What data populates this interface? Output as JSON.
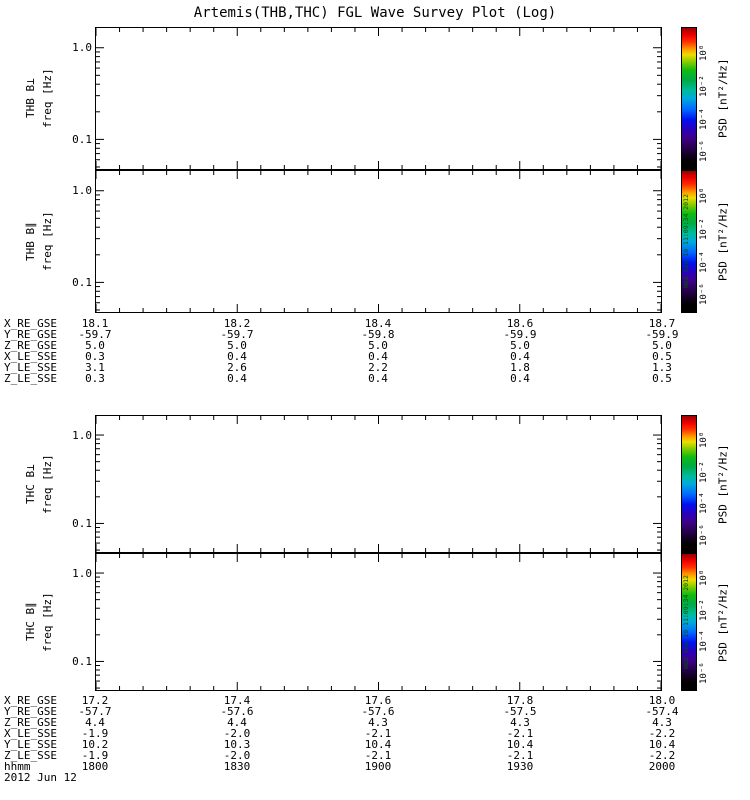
{
  "chart_data": {
    "type": "heatmap",
    "title": "Artemis(THB,THC) FGL Wave Survey Plot (Log)",
    "panels": [
      {
        "name": "THB B⊥",
        "axis_label": "freq [Hz]",
        "yscale": "log",
        "ytick_labels": [
          "1.0",
          "0.1"
        ],
        "data": []
      },
      {
        "name": "THB B∥",
        "axis_label": "freq [Hz]",
        "yscale": "log",
        "ytick_labels": [
          "1.0",
          "0.1"
        ],
        "data": []
      },
      {
        "name": "THC B⊥",
        "axis_label": "freq [Hz]",
        "yscale": "log",
        "ytick_labels": [
          "1.0",
          "0.1"
        ],
        "data": []
      },
      {
        "name": "THC B∥",
        "axis_label": "freq [Hz]",
        "yscale": "log",
        "ytick_labels": [
          "1.0",
          "0.1"
        ],
        "data": []
      }
    ],
    "colorbar": {
      "label": "PSD [nT²/Hz]",
      "scale": "log",
      "tick_labels": [
        "10⁰",
        "10⁻²",
        "10⁻⁴",
        "10⁻⁶"
      ]
    },
    "time_axis": {
      "label": "hhmm",
      "ticks": [
        "1800",
        "1830",
        "1900",
        "1930",
        "2000"
      ],
      "date": "2012 Jun 12"
    },
    "ephemeris": [
      {
        "spacecraft": "THB",
        "rows": [
          {
            "label": "X_RE_GSE",
            "values": [
              "18.1",
              "18.2",
              "18.4",
              "18.6",
              "18.7"
            ]
          },
          {
            "label": "Y_RE_GSE",
            "values": [
              "-59.7",
              "-59.7",
              "-59.8",
              "-59.9",
              "-59.9"
            ]
          },
          {
            "label": "Z_RE_GSE",
            "values": [
              "5.0",
              "5.0",
              "5.0",
              "5.0",
              "5.0"
            ]
          },
          {
            "label": "X_LE_SSE",
            "values": [
              "0.3",
              "0.4",
              "0.4",
              "0.4",
              "0.5"
            ]
          },
          {
            "label": "Y_LE_SSE",
            "values": [
              "3.1",
              "2.6",
              "2.2",
              "1.8",
              "1.3"
            ]
          },
          {
            "label": "Z_LE_SSE",
            "values": [
              "0.3",
              "0.4",
              "0.4",
              "0.4",
              "0.5"
            ]
          }
        ]
      },
      {
        "spacecraft": "THC",
        "rows": [
          {
            "label": "X_RE_GSE",
            "values": [
              "17.2",
              "17.4",
              "17.6",
              "17.8",
              "18.0"
            ]
          },
          {
            "label": "Y_RE_GSE",
            "values": [
              "-57.7",
              "-57.6",
              "-57.6",
              "-57.5",
              "-57.4"
            ]
          },
          {
            "label": "Z_RE_GSE",
            "values": [
              "4.4",
              "4.4",
              "4.3",
              "4.3",
              "4.3"
            ]
          },
          {
            "label": "X_LE_SSE",
            "values": [
              "-1.9",
              "-2.0",
              "-2.1",
              "-2.1",
              "-2.2"
            ]
          },
          {
            "label": "Y_LE_SSE",
            "values": [
              "10.2",
              "10.3",
              "10.4",
              "10.4",
              "10.4"
            ]
          },
          {
            "label": "Z_LE_SSE",
            "values": [
              "-1.9",
              "-2.0",
              "-2.1",
              "-2.1",
              "-2.2"
            ]
          }
        ]
      }
    ],
    "timestamp": "Wed Sep 19 11:09:34 2012"
  }
}
